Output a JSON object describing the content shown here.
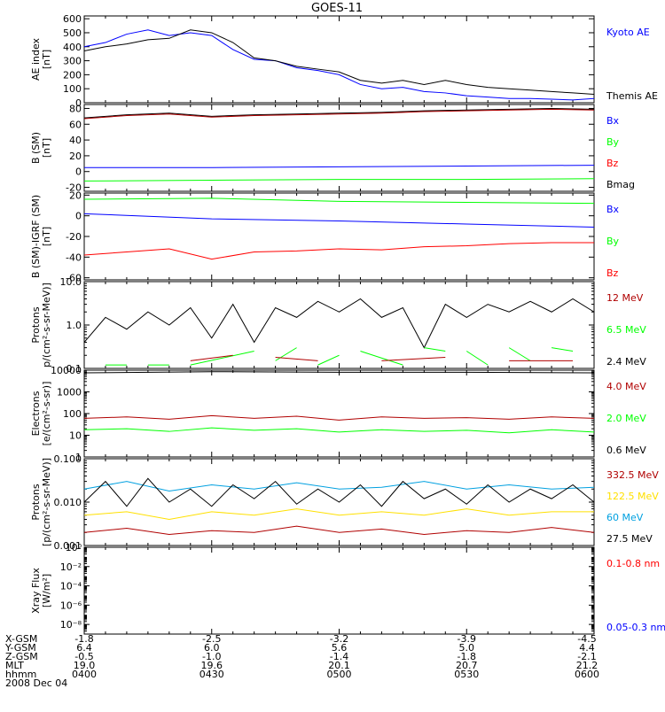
{
  "title": "GOES-11",
  "x_ticks": [
    "0400",
    "0430",
    "0500",
    "0530",
    "0600"
  ],
  "x_range": [
    "0400",
    "0600"
  ],
  "footer": {
    "row_labels": [
      "X-GSM",
      "Y-GSM",
      "Z-GSM",
      "MLT",
      "hhmm",
      "2008 Dec 04"
    ],
    "columns": [
      [
        "-1.8",
        "6.4",
        "-0.5",
        "19.0",
        "0400"
      ],
      [
        "-2.5",
        "6.0",
        "-1.0",
        "19.6",
        "0430"
      ],
      [
        "-3.2",
        "5.6",
        "-1.4",
        "20.1",
        "0500"
      ],
      [
        "-3.9",
        "5.0",
        "-1.8",
        "20.7",
        "0530"
      ],
      [
        "-4.5",
        "4.4",
        "-2.1",
        "21.2",
        "0600"
      ]
    ]
  },
  "colors": {
    "black": "#000000",
    "blue": "#0000ff",
    "green": "#00ff00",
    "red": "#ff0000",
    "darkred": "#b00000",
    "cyan": "#00a0e0",
    "yellow": "#ffe000",
    "axis": "#000000"
  },
  "chart_data": [
    {
      "type": "line",
      "ylabel": "AE index\n[nT]",
      "ylim": [
        0,
        620
      ],
      "log": false,
      "yticks": [
        0,
        100,
        200,
        300,
        400,
        500,
        600
      ],
      "labels": [
        {
          "text": "Kyoto AE",
          "color": "blue"
        },
        {
          "text": "Themis AE",
          "color": "black"
        }
      ],
      "series": [
        {
          "name": "Kyoto AE",
          "color": "blue",
          "kind": "line",
          "x": [
            "0400",
            "0405",
            "0410",
            "0415",
            "0420",
            "0425",
            "0430",
            "0435",
            "0440",
            "0445",
            "0450",
            "0455",
            "0500",
            "0505",
            "0510",
            "0515",
            "0520",
            "0525",
            "0530",
            "0535",
            "0540",
            "0545",
            "0550",
            "0555",
            "0600"
          ],
          "values": [
            400,
            430,
            490,
            520,
            480,
            500,
            480,
            380,
            310,
            300,
            250,
            230,
            200,
            130,
            100,
            110,
            80,
            70,
            50,
            40,
            30,
            30,
            25,
            20,
            30
          ]
        },
        {
          "name": "Themis AE",
          "color": "black",
          "kind": "line",
          "x": [
            "0400",
            "0405",
            "0410",
            "0415",
            "0420",
            "0425",
            "0430",
            "0435",
            "0440",
            "0445",
            "0450",
            "0455",
            "0500",
            "0505",
            "0510",
            "0515",
            "0520",
            "0525",
            "0530",
            "0535",
            "0540",
            "0545",
            "0550",
            "0555",
            "0600"
          ],
          "values": [
            370,
            400,
            420,
            450,
            460,
            520,
            500,
            430,
            320,
            300,
            260,
            240,
            220,
            160,
            140,
            160,
            130,
            160,
            130,
            110,
            100,
            90,
            80,
            70,
            60
          ]
        }
      ]
    },
    {
      "type": "line",
      "ylabel": "B (SM)\n[nT]",
      "ylim": [
        -25,
        85
      ],
      "log": false,
      "yticks": [
        -20,
        0,
        20,
        40,
        60,
        80
      ],
      "labels": [
        {
          "text": "Bx",
          "color": "blue"
        },
        {
          "text": "By",
          "color": "green"
        },
        {
          "text": "Bz",
          "color": "red"
        },
        {
          "text": "Bmag",
          "color": "black"
        }
      ],
      "series": [
        {
          "name": "Bmag",
          "color": "black",
          "kind": "line",
          "x": [
            "0400",
            "0410",
            "0420",
            "0430",
            "0440",
            "0450",
            "0500",
            "0510",
            "0520",
            "0530",
            "0540",
            "0550",
            "0600"
          ],
          "values": [
            68,
            72,
            74,
            70,
            72,
            73,
            74,
            75,
            77,
            78,
            79,
            80,
            79
          ]
        },
        {
          "name": "Bz",
          "color": "darkred",
          "kind": "line",
          "x": [
            "0400",
            "0410",
            "0420",
            "0430",
            "0440",
            "0450",
            "0500",
            "0510",
            "0520",
            "0530",
            "0540",
            "0550",
            "0600"
          ],
          "values": [
            67,
            71,
            73,
            69,
            71,
            72,
            73,
            74,
            76,
            77,
            78,
            79,
            78
          ]
        },
        {
          "name": "Bx",
          "color": "blue",
          "kind": "line",
          "x": [
            "0400",
            "0430",
            "0500",
            "0530",
            "0600"
          ],
          "values": [
            5,
            5,
            6,
            7,
            8
          ]
        },
        {
          "name": "By",
          "color": "green",
          "kind": "line",
          "x": [
            "0400",
            "0430",
            "0500",
            "0530",
            "0600"
          ],
          "values": [
            -12,
            -11,
            -10,
            -10,
            -9
          ]
        }
      ]
    },
    {
      "type": "line",
      "ylabel": "B (SM)-IGRF (SM)\n[nT]",
      "ylim": [
        -62,
        22
      ],
      "log": false,
      "yticks": [
        -60,
        -40,
        -20,
        0,
        20
      ],
      "labels": [
        {
          "text": "Bx",
          "color": "blue"
        },
        {
          "text": "By",
          "color": "green"
        },
        {
          "text": "Bz",
          "color": "red"
        }
      ],
      "series": [
        {
          "name": "By",
          "color": "green",
          "kind": "line",
          "x": [
            "0400",
            "0430",
            "0500",
            "0530",
            "0600"
          ],
          "values": [
            16,
            17,
            14,
            13,
            12
          ]
        },
        {
          "name": "Bx",
          "color": "blue",
          "kind": "line",
          "x": [
            "0400",
            "0430",
            "0500",
            "0530",
            "0600"
          ],
          "values": [
            2,
            -3,
            -5,
            -8,
            -11
          ]
        },
        {
          "name": "Bz",
          "color": "red",
          "kind": "line",
          "x": [
            "0400",
            "0410",
            "0420",
            "0430",
            "0440",
            "0450",
            "0500",
            "0510",
            "0520",
            "0530",
            "0540",
            "0550",
            "0600"
          ],
          "values": [
            -38,
            -35,
            -32,
            -42,
            -35,
            -34,
            -32,
            -33,
            -30,
            -29,
            -27,
            -26,
            -26
          ]
        }
      ]
    },
    {
      "type": "line",
      "ylabel": "Protons\np/(cm²-s-sr-MeV)]",
      "ylim": [
        0.1,
        10
      ],
      "log": true,
      "yticks": [
        0.1,
        1.0,
        10.0
      ],
      "ytick_labels": [
        "0.1",
        "1.0",
        "10.0"
      ],
      "labels": [
        {
          "text": "12 MeV",
          "color": "darkred"
        },
        {
          "text": "6.5 MeV",
          "color": "green"
        },
        {
          "text": "2.4 MeV",
          "color": "black"
        }
      ],
      "series": [
        {
          "name": "2.4 MeV",
          "color": "black",
          "kind": "line",
          "x": [
            "0400",
            "0405",
            "0410",
            "0415",
            "0420",
            "0425",
            "0430",
            "0435",
            "0440",
            "0445",
            "0450",
            "0455",
            "0500",
            "0505",
            "0510",
            "0515",
            "0520",
            "0525",
            "0530",
            "0535",
            "0540",
            "0545",
            "0550",
            "0555",
            "0600"
          ],
          "values": [
            0.4,
            1.5,
            0.8,
            2.0,
            1.0,
            2.5,
            0.5,
            3.0,
            0.4,
            2.5,
            1.5,
            3.5,
            2.0,
            4.0,
            1.5,
            2.5,
            0.3,
            3.0,
            1.5,
            3.0,
            2.0,
            3.5,
            2.0,
            4.0,
            2.0
          ]
        },
        {
          "name": "6.5 MeV",
          "color": "green",
          "kind": "segments",
          "x": [
            "0405",
            "0410",
            "0415",
            "0420",
            "0425",
            "0440",
            "0445",
            "0450",
            "0455",
            "0500",
            "0505",
            "0515",
            "0520",
            "0525",
            "0530",
            "0535",
            "0540",
            "0545",
            "0550",
            "0555"
          ],
          "values": [
            0.12,
            0.12,
            0.12,
            0.12,
            0.12,
            0.25,
            0.15,
            0.3,
            0.12,
            0.2,
            0.25,
            0.12,
            0.3,
            0.25,
            0.25,
            0.12,
            0.3,
            0.15,
            0.3,
            0.25
          ]
        },
        {
          "name": "12 MeV",
          "color": "darkred",
          "kind": "segments",
          "x": [
            "0425",
            "0435",
            "0445",
            "0455",
            "0510",
            "0525",
            "0540",
            "0555"
          ],
          "values": [
            0.15,
            0.2,
            0.18,
            0.15,
            0.15,
            0.18,
            0.15,
            0.15
          ]
        }
      ]
    },
    {
      "type": "line",
      "ylabel": "Electrons\n[e/(cm²-s-sr)]",
      "ylim": [
        1,
        10000
      ],
      "log": true,
      "yticks": [
        1,
        10,
        100,
        1000,
        10000
      ],
      "ytick_labels": [
        "1",
        "10",
        "100",
        "1000",
        "10000"
      ],
      "labels": [
        {
          "text": "4.0 MeV",
          "color": "darkred"
        },
        {
          "text": "2.0 MeV",
          "color": "green"
        },
        {
          "text": "0.6 MeV",
          "color": "black"
        }
      ],
      "series": [
        {
          "name": "0.6 MeV",
          "color": "black",
          "kind": "line",
          "x": [
            "0400",
            "0430",
            "0500",
            "0530",
            "0600"
          ],
          "values": [
            7500,
            8500,
            8000,
            8000,
            7500
          ]
        },
        {
          "name": "4.0 MeV",
          "color": "darkred",
          "kind": "line",
          "x": [
            "0400",
            "0410",
            "0420",
            "0430",
            "0440",
            "0450",
            "0500",
            "0510",
            "0520",
            "0530",
            "0540",
            "0550",
            "0600"
          ],
          "values": [
            60,
            70,
            55,
            80,
            60,
            75,
            50,
            70,
            60,
            65,
            55,
            70,
            60
          ]
        },
        {
          "name": "2.0 MeV",
          "color": "green",
          "kind": "line",
          "x": [
            "0400",
            "0410",
            "0420",
            "0430",
            "0440",
            "0450",
            "0500",
            "0510",
            "0520",
            "0530",
            "0540",
            "0550",
            "0600"
          ],
          "values": [
            18,
            20,
            15,
            22,
            17,
            20,
            14,
            18,
            15,
            17,
            13,
            18,
            14
          ]
        }
      ]
    },
    {
      "type": "line",
      "ylabel": "Protons\n[p/(cm²-s-sr-MeV)]",
      "ylim": [
        0.001,
        0.1
      ],
      "log": true,
      "yticks": [
        0.001,
        0.01,
        0.1
      ],
      "ytick_labels": [
        "0.001",
        "0.010",
        "0.100"
      ],
      "labels": [
        {
          "text": "332.5 MeV",
          "color": "darkred"
        },
        {
          "text": "122.5 MeV",
          "color": "yellow"
        },
        {
          "text": "60 MeV",
          "color": "cyan"
        },
        {
          "text": "27.5 MeV",
          "color": "black"
        }
      ],
      "series": [
        {
          "name": "60 MeV",
          "color": "cyan",
          "kind": "line",
          "x": [
            "0400",
            "0410",
            "0420",
            "0430",
            "0440",
            "0450",
            "0500",
            "0510",
            "0520",
            "0530",
            "0540",
            "0550",
            "0600"
          ],
          "values": [
            0.02,
            0.03,
            0.018,
            0.025,
            0.02,
            0.028,
            0.02,
            0.022,
            0.03,
            0.02,
            0.025,
            0.02,
            0.022
          ]
        },
        {
          "name": "27.5 MeV",
          "color": "black",
          "kind": "line",
          "x": [
            "0400",
            "0405",
            "0410",
            "0415",
            "0420",
            "0425",
            "0430",
            "0435",
            "0440",
            "0445",
            "0450",
            "0455",
            "0500",
            "0505",
            "0510",
            "0515",
            "0520",
            "0525",
            "0530",
            "0535",
            "0540",
            "0545",
            "0550",
            "0555",
            "0600"
          ],
          "values": [
            0.01,
            0.03,
            0.008,
            0.035,
            0.01,
            0.02,
            0.008,
            0.025,
            0.012,
            0.03,
            0.009,
            0.02,
            0.01,
            0.025,
            0.008,
            0.03,
            0.012,
            0.02,
            0.009,
            0.025,
            0.01,
            0.02,
            0.012,
            0.025,
            0.01
          ]
        },
        {
          "name": "122.5 MeV",
          "color": "yellow",
          "kind": "line",
          "x": [
            "0400",
            "0410",
            "0420",
            "0430",
            "0440",
            "0450",
            "0500",
            "0510",
            "0520",
            "0530",
            "0540",
            "0550",
            "0600"
          ],
          "values": [
            0.005,
            0.006,
            0.004,
            0.006,
            0.005,
            0.007,
            0.005,
            0.006,
            0.005,
            0.007,
            0.005,
            0.006,
            0.006
          ]
        },
        {
          "name": "332.5 MeV",
          "color": "darkred",
          "kind": "line",
          "x": [
            "0400",
            "0410",
            "0420",
            "0430",
            "0440",
            "0450",
            "0500",
            "0510",
            "0520",
            "0530",
            "0540",
            "0550",
            "0600"
          ],
          "values": [
            0.002,
            0.0025,
            0.0018,
            0.0022,
            0.002,
            0.0028,
            0.002,
            0.0024,
            0.0018,
            0.0022,
            0.002,
            0.0026,
            0.002
          ]
        }
      ]
    },
    {
      "type": "line",
      "ylabel": "Xray Flux\n[W/m²]",
      "ylim": [
        1e-09,
        1
      ],
      "log": true,
      "yticks": [
        1e-08,
        1e-06,
        0.0001,
        0.01,
        1
      ],
      "ytick_labels": [
        "10⁻⁸",
        "10⁻⁶",
        "10⁻⁴",
        "10⁻²",
        "10⁰"
      ],
      "labels": [
        {
          "text": "0.1-0.8 nm",
          "color": "red"
        },
        {
          "text": "0.05-0.3 nm",
          "color": "blue"
        }
      ],
      "series": []
    }
  ]
}
